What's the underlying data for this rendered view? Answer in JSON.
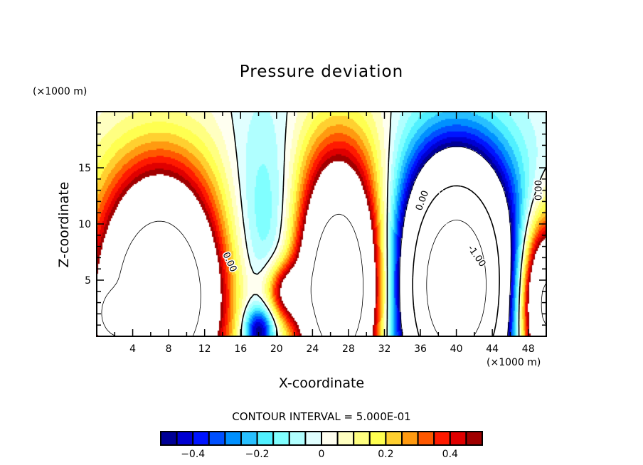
{
  "chart_data": {
    "type": "heatmap",
    "title": "Pressure deviation",
    "xlabel": "X-coordinate",
    "ylabel": "Z-coordinate",
    "x_unit_label": "(×1000 m)",
    "y_unit_label": "(×1000 m)",
    "xlim": [
      0,
      50
    ],
    "ylim": [
      0,
      20
    ],
    "x_ticks": [
      4,
      8,
      12,
      16,
      20,
      24,
      28,
      32,
      36,
      40,
      44,
      48
    ],
    "y_ticks": [
      5,
      10,
      15
    ],
    "contour_interval_text": "CONTOUR INTERVAL = 5.000E-01",
    "contour_labels": [
      "0.00",
      "0.00",
      "0.00",
      "-1.00"
    ],
    "colorbar": {
      "levels": [
        -0.5,
        -0.45,
        -0.4,
        -0.35,
        -0.3,
        -0.25,
        -0.2,
        -0.15,
        -0.1,
        -0.05,
        0,
        0.05,
        0.1,
        0.15,
        0.2,
        0.25,
        0.3,
        0.35,
        0.4,
        0.45,
        0.5
      ],
      "colors": [
        "#000096",
        "#0000d2",
        "#0014ff",
        "#0050ff",
        "#0090ff",
        "#28c0ff",
        "#50f0ff",
        "#80ffff",
        "#b0ffff",
        "#e0ffff",
        "#fffff0",
        "#ffffc0",
        "#ffff80",
        "#ffff50",
        "#ffd030",
        "#ff9a10",
        "#ff5800",
        "#ff1a00",
        "#e00000",
        "#a00000"
      ],
      "tick_values": [
        "-0.4",
        "-0.2",
        "0",
        "0.2",
        "0.4"
      ]
    },
    "features": [
      {
        "kind": "positive lobe",
        "x_center": 7,
        "z_top": 9,
        "peak": ">0.5"
      },
      {
        "kind": "negative plume",
        "x_center": 18,
        "z_range": [
          5,
          20
        ],
        "min": -0.25
      },
      {
        "kind": "positive lobe",
        "x_center": 26,
        "z_top": 10,
        "peak": ">0.5"
      },
      {
        "kind": "negative lobe",
        "x_center": 40,
        "z_top": 12,
        "min": "<-1.5"
      },
      {
        "kind": "positive lobe",
        "x_center": 48,
        "z_top": 8,
        "peak": ">0.5"
      }
    ]
  }
}
